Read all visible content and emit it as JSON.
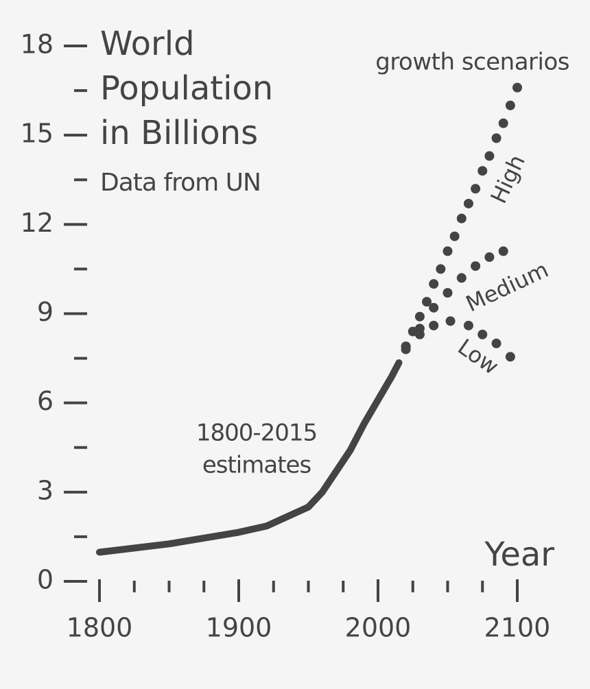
{
  "chart_data": {
    "type": "line",
    "title_lines": [
      "World",
      "Population",
      "in Billions"
    ],
    "subtitle": "Data from UN",
    "scenario_title": "growth scenarios",
    "annotation_lines": [
      "1800-2015",
      "estimates"
    ],
    "x_label": "Year",
    "color": "#444444",
    "xlim": [
      1800,
      2100
    ],
    "ylim": [
      0,
      18
    ],
    "xticks": [
      1800,
      1900,
      2000,
      2100
    ],
    "xticks_minor": [
      1825,
      1850,
      1875,
      1925,
      1950,
      1975,
      2025,
      2050,
      2075
    ],
    "yticks": [
      0,
      3,
      6,
      9,
      12,
      15,
      18
    ],
    "yticks_minor": [
      1.5,
      4.5,
      7.5,
      10.5,
      13.5,
      16.5
    ],
    "series": [
      {
        "style": "solid",
        "x": [
          1800,
          1850,
          1900,
          1920,
          1950,
          1960,
          1970,
          1980,
          1990,
          2000,
          2010,
          2015
        ],
        "values": [
          0.98,
          1.26,
          1.65,
          1.86,
          2.5,
          3.0,
          3.7,
          4.4,
          5.3,
          6.1,
          6.9,
          7.35
        ]
      },
      {
        "name": "High",
        "style": "dotted",
        "x": [
          2020,
          2025,
          2030,
          2035,
          2040,
          2045,
          2050,
          2055,
          2060,
          2065,
          2070,
          2075,
          2080,
          2085,
          2090,
          2095,
          2100
        ],
        "values": [
          7.9,
          8.4,
          8.9,
          9.4,
          10.0,
          10.5,
          11.1,
          11.6,
          12.2,
          12.7,
          13.2,
          13.8,
          14.3,
          14.9,
          15.4,
          16.0,
          16.6
        ]
      },
      {
        "name": "Medium",
        "style": "dotted",
        "x": [
          2020,
          2030,
          2040,
          2050,
          2060,
          2070,
          2080,
          2090
        ],
        "values": [
          7.8,
          8.5,
          9.2,
          9.7,
          10.2,
          10.6,
          10.9,
          11.1
        ]
      },
      {
        "name": "Low",
        "style": "dotted",
        "x": [
          2020,
          2030,
          2040,
          2052,
          2065,
          2075,
          2085,
          2095
        ],
        "values": [
          7.9,
          8.3,
          8.6,
          8.75,
          8.6,
          8.3,
          8.0,
          7.55
        ]
      }
    ]
  }
}
